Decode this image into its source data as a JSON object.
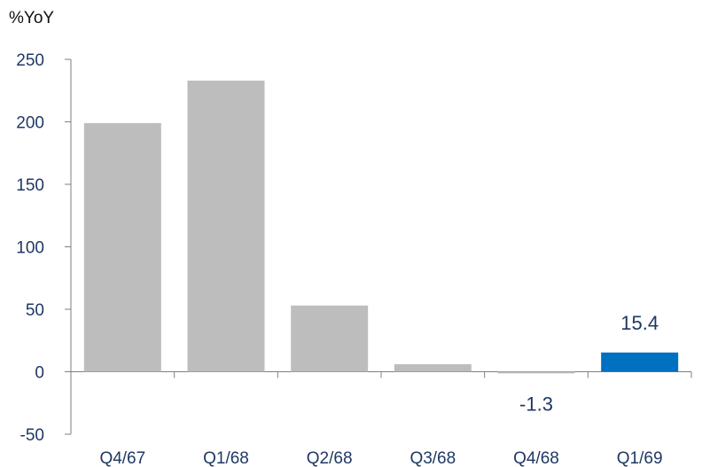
{
  "chart_data": {
    "type": "bar",
    "ylabel": "%YoY",
    "categories": [
      "Q4/67",
      "Q1/68",
      "Q2/68",
      "Q3/68",
      "Q4/68",
      "Q1/69"
    ],
    "values": [
      199,
      233,
      53,
      6,
      -1.3,
      15.4
    ],
    "data_labels": [
      "",
      "",
      "",
      "",
      "-1.3",
      "15.4"
    ],
    "yticks": [
      -50,
      0,
      50,
      100,
      150,
      200,
      250
    ],
    "ylim": [
      -50,
      250
    ],
    "highlight_index": 5,
    "grid": false,
    "legend": "none",
    "colors": {
      "bar": "#bdbdbd",
      "highlight": "#0070c0",
      "axis": "#7f7f7f",
      "tick_label": "#1f3864"
    }
  }
}
